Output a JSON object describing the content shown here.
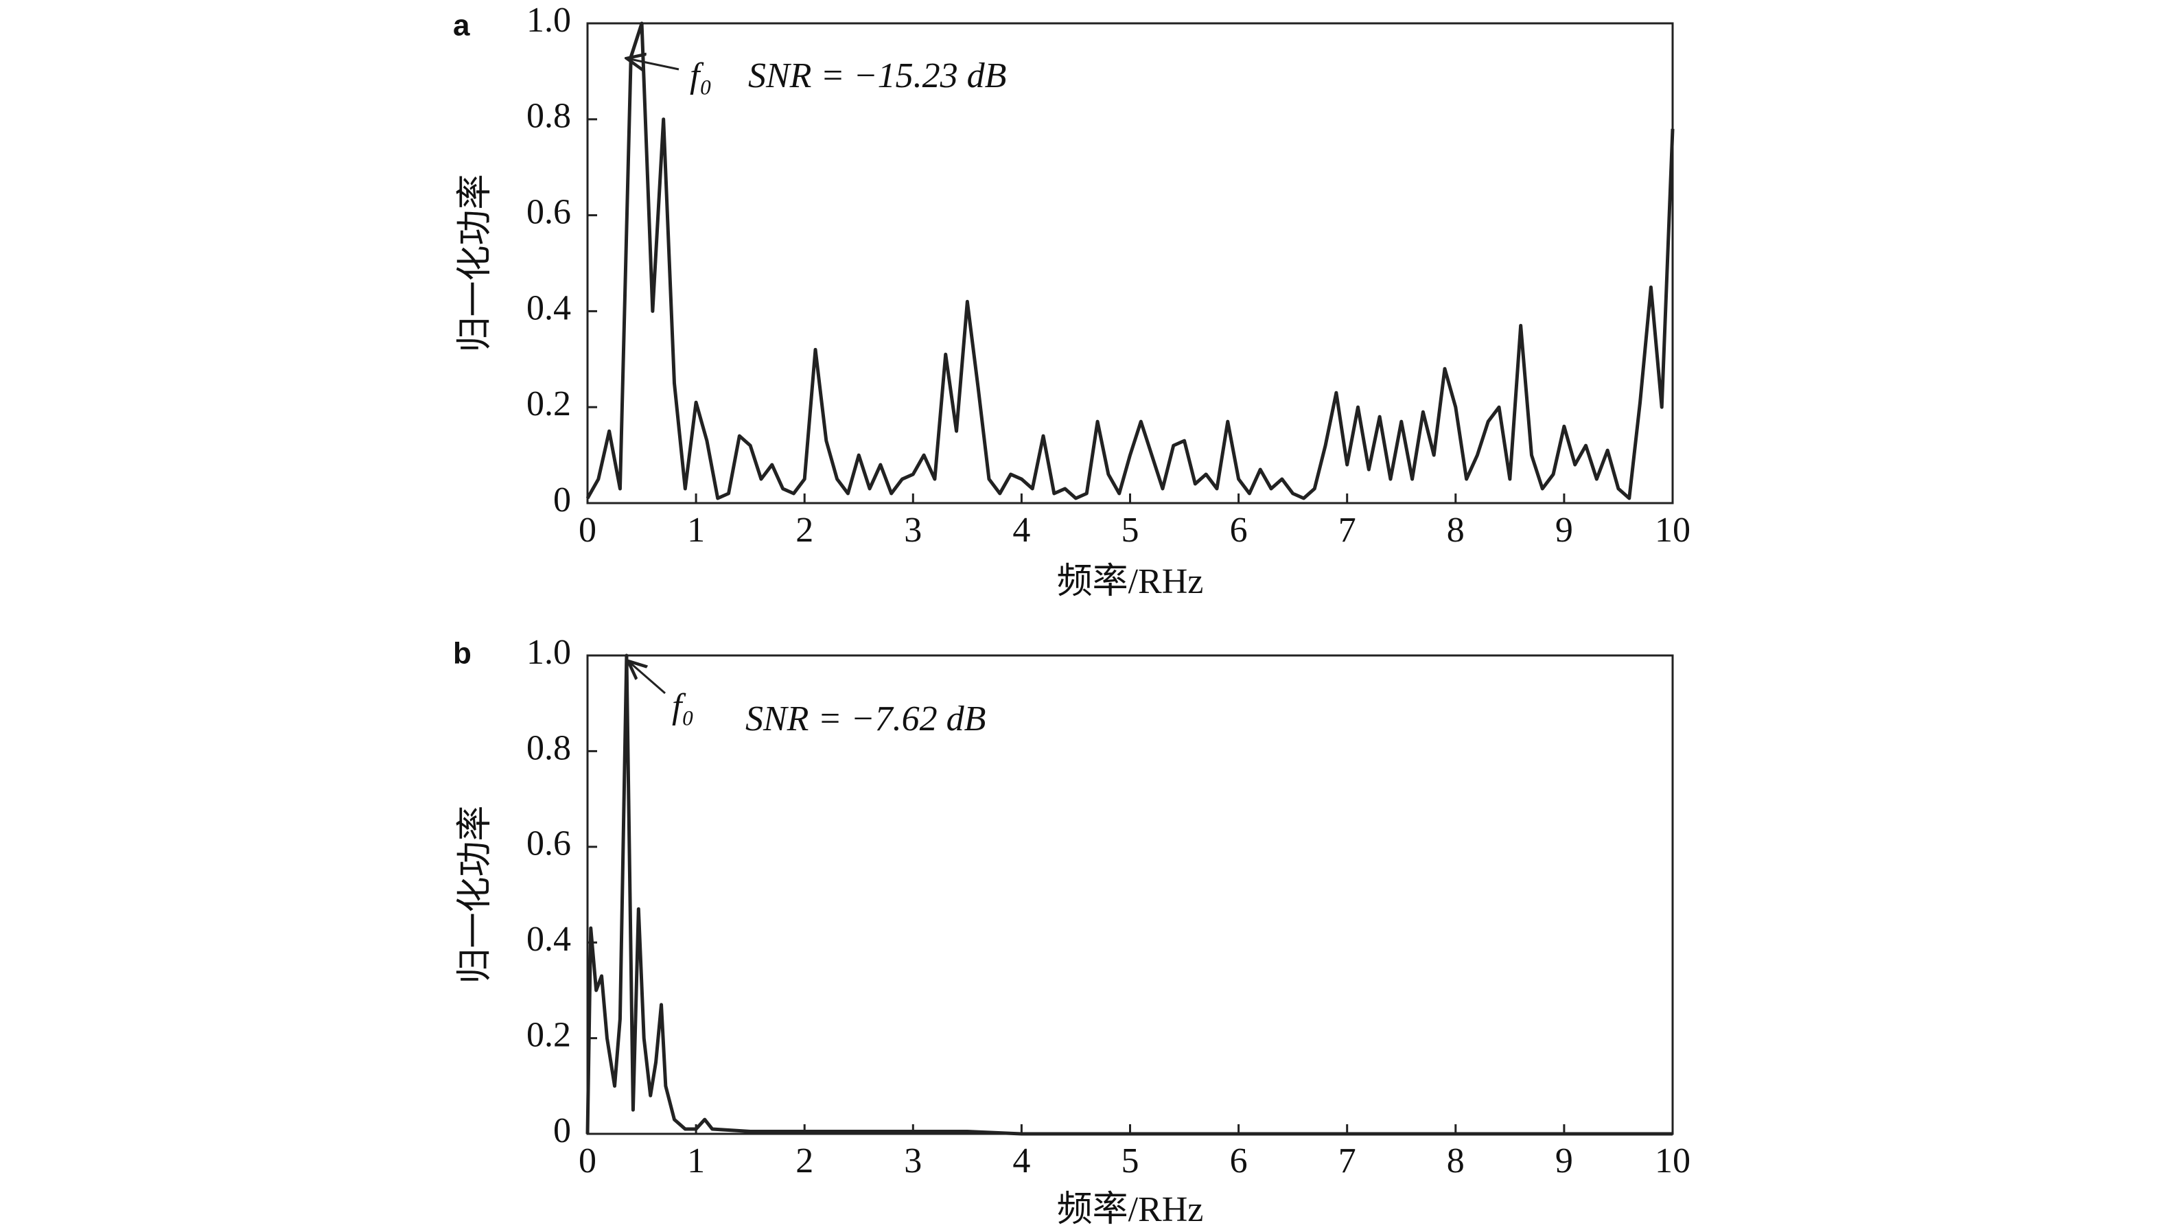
{
  "chart_data": [
    {
      "type": "line",
      "panel_label": "a",
      "peak_label": "f₀",
      "snr_label": "SNR = −15.23 dB",
      "xlabel": "频率/RHz",
      "ylabel": "归一化功率",
      "color": "#222222",
      "xlim": [
        0,
        10
      ],
      "ylim": [
        0,
        1
      ],
      "xticks": [
        0,
        1,
        2,
        3,
        4,
        5,
        6,
        7,
        8,
        9,
        10
      ],
      "yticks": [
        0,
        0.2,
        0.4,
        0.6,
        0.8,
        {
          "value": 1,
          "label": "1.0"
        }
      ],
      "x": [
        0,
        0.1,
        0.2,
        0.3,
        0.4,
        0.5,
        0.6,
        0.7,
        0.8,
        0.9,
        1,
        1.1,
        1.2,
        1.3,
        1.4,
        1.5,
        1.6,
        1.7,
        1.8,
        1.9,
        2,
        2.1,
        2.2,
        2.3,
        2.4,
        2.5,
        2.6,
        2.7,
        2.8,
        2.9,
        3,
        3.1,
        3.2,
        3.3,
        3.4,
        3.5,
        3.6,
        3.7,
        3.8,
        3.9,
        4,
        4.1,
        4.2,
        4.3,
        4.4,
        4.5,
        4.6,
        4.7,
        4.8,
        4.9,
        5,
        5.1,
        5.2,
        5.3,
        5.4,
        5.5,
        5.6,
        5.7,
        5.8,
        5.9,
        6,
        6.1,
        6.2,
        6.3,
        6.4,
        6.5,
        6.6,
        6.7,
        6.8,
        6.9,
        7,
        7.1,
        7.2,
        7.3,
        7.4,
        7.5,
        7.6,
        7.7,
        7.8,
        7.9,
        8,
        8.1,
        8.2,
        8.3,
        8.4,
        8.5,
        8.6,
        8.7,
        8.8,
        8.9,
        9,
        9.1,
        9.2,
        9.3,
        9.4,
        9.5,
        9.6,
        9.7,
        9.8,
        9.9,
        10
      ],
      "values": [
        0.01,
        0.05,
        0.15,
        0.03,
        0.93,
        1.0,
        0.4,
        0.8,
        0.25,
        0.03,
        0.21,
        0.13,
        0.01,
        0.02,
        0.14,
        0.12,
        0.05,
        0.08,
        0.03,
        0.02,
        0.05,
        0.32,
        0.13,
        0.05,
        0.02,
        0.1,
        0.03,
        0.08,
        0.02,
        0.05,
        0.06,
        0.1,
        0.05,
        0.31,
        0.15,
        0.42,
        0.24,
        0.05,
        0.02,
        0.06,
        0.05,
        0.03,
        0.14,
        0.02,
        0.03,
        0.01,
        0.02,
        0.17,
        0.06,
        0.02,
        0.1,
        0.17,
        0.1,
        0.03,
        0.12,
        0.13,
        0.04,
        0.06,
        0.03,
        0.17,
        0.05,
        0.02,
        0.07,
        0.03,
        0.05,
        0.02,
        0.01,
        0.03,
        0.12,
        0.23,
        0.08,
        0.2,
        0.07,
        0.18,
        0.05,
        0.17,
        0.05,
        0.19,
        0.1,
        0.28,
        0.2,
        0.05,
        0.1,
        0.17,
        0.2,
        0.05,
        0.37,
        0.1,
        0.03,
        0.06,
        0.16,
        0.08,
        0.12,
        0.05,
        0.11,
        0.03,
        0.01,
        0.21,
        0.45,
        0.2,
        0.78
      ]
    },
    {
      "type": "line",
      "panel_label": "b",
      "peak_label": "f₀",
      "snr_label": "SNR = −7.62 dB",
      "xlabel": "频率/RHz",
      "ylabel": "归一化功率",
      "color": "#222222",
      "xlim": [
        0,
        10
      ],
      "ylim": [
        0,
        1
      ],
      "xticks": [
        0,
        1,
        2,
        3,
        4,
        5,
        6,
        7,
        8,
        9,
        10
      ],
      "yticks": [
        0,
        0.2,
        0.4,
        0.6,
        0.8,
        {
          "value": 1,
          "label": "1.0"
        }
      ],
      "x": [
        0,
        0.03,
        0.08,
        0.13,
        0.18,
        0.25,
        0.3,
        0.36,
        0.42,
        0.47,
        0.52,
        0.58,
        0.63,
        0.68,
        0.72,
        0.8,
        0.9,
        1.0,
        1.08,
        1.15,
        1.5,
        2,
        2.5,
        3,
        3.5,
        4,
        5,
        6,
        7,
        8,
        9,
        10
      ],
      "values": [
        0,
        0.43,
        0.3,
        0.33,
        0.2,
        0.1,
        0.24,
        1.0,
        0.05,
        0.47,
        0.2,
        0.08,
        0.15,
        0.27,
        0.1,
        0.03,
        0.01,
        0.01,
        0.03,
        0.01,
        0.005,
        0.005,
        0.005,
        0.005,
        0.005,
        0,
        0,
        0,
        0,
        0,
        0,
        0
      ]
    }
  ]
}
